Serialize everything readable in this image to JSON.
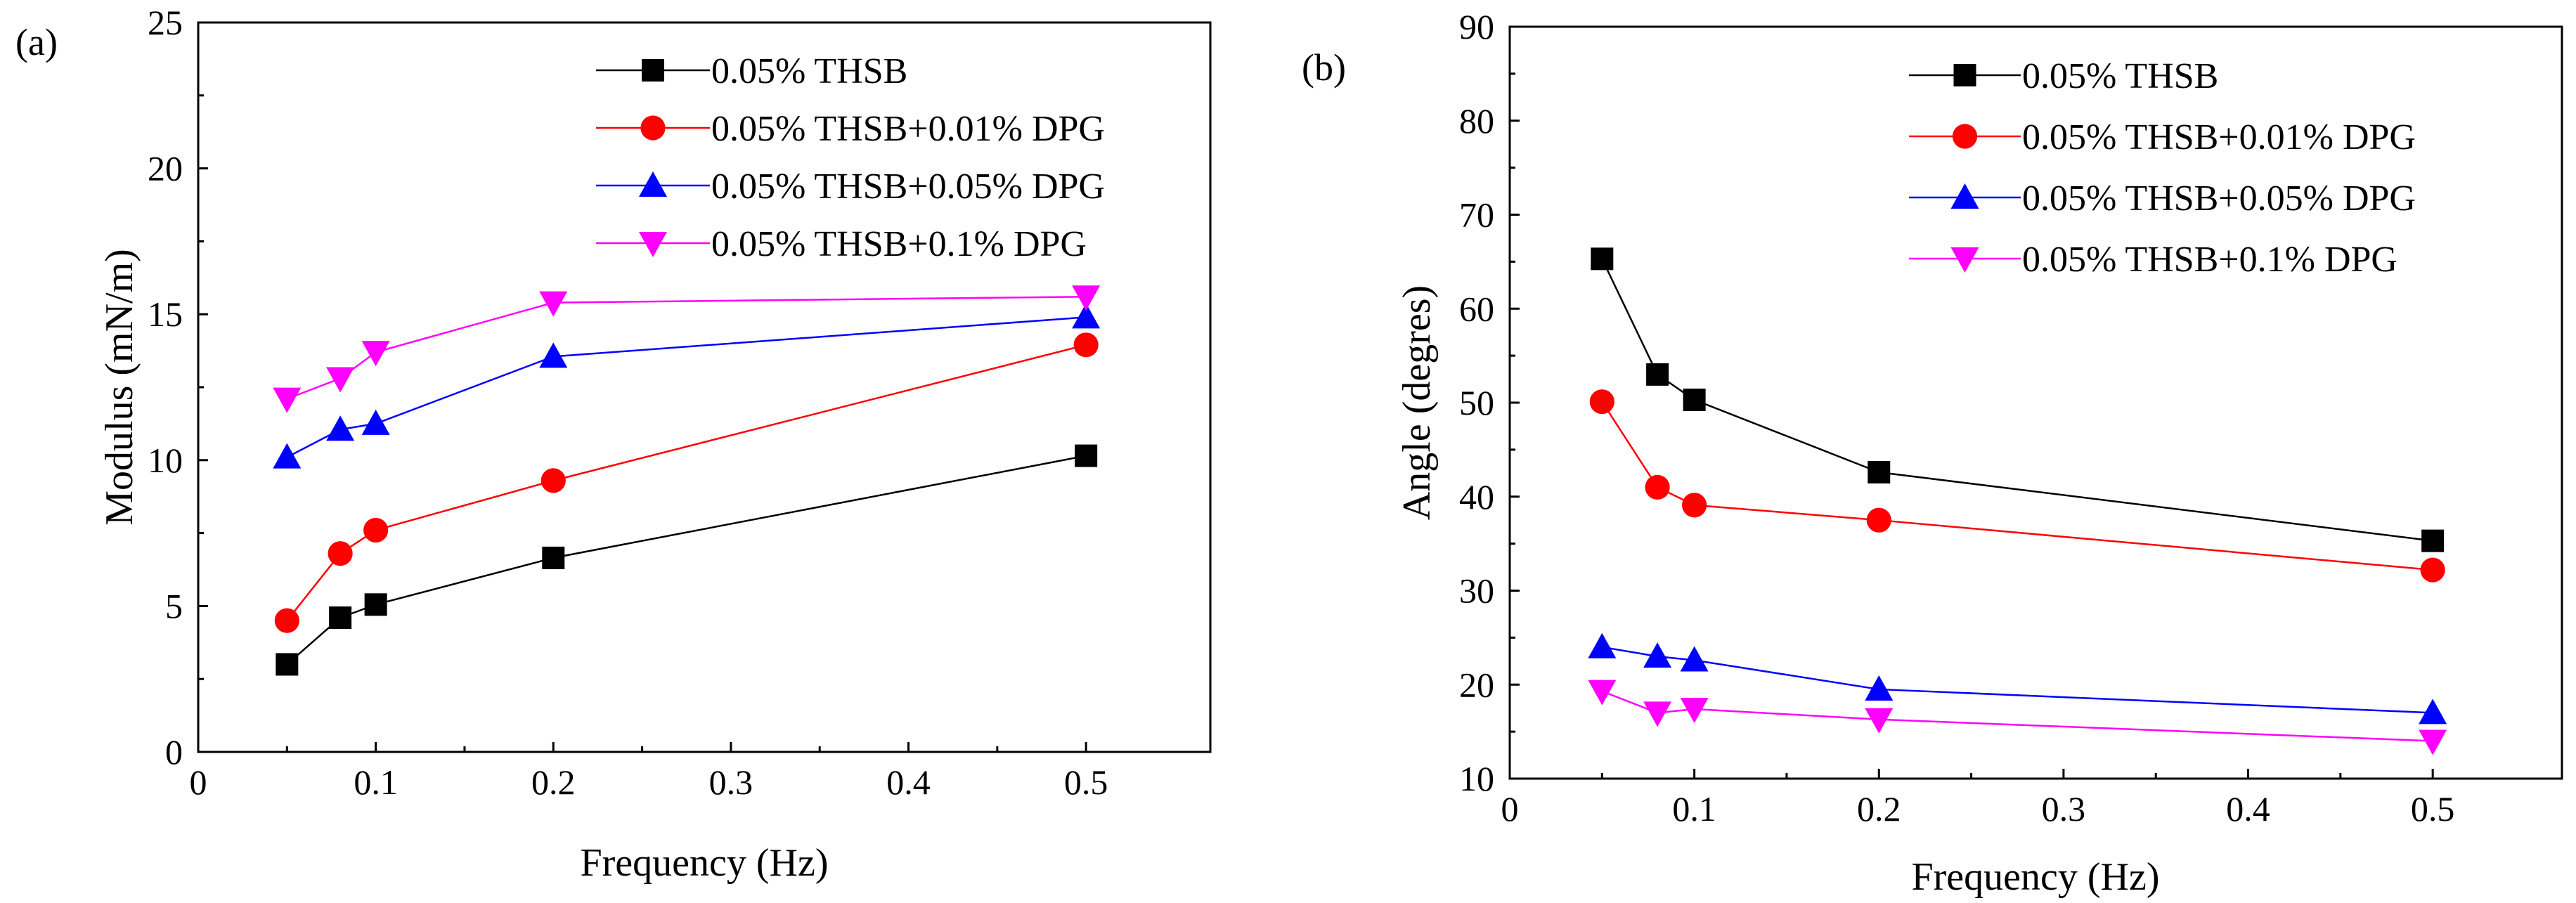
{
  "chart_data": [
    {
      "type": "line",
      "panel_label": "(a)",
      "title": "",
      "xlabel": "Frequency (Hz)",
      "ylabel": "Modulus (mN/m)",
      "xlim": [
        0,
        0.57
      ],
      "ylim": [
        0,
        25
      ],
      "xticks": [
        0,
        0.1,
        0.2,
        0.3,
        0.4,
        0.5
      ],
      "xtick_labels": [
        "0",
        "0.1",
        "0.2",
        "0.3",
        "0.4",
        "0.5"
      ],
      "yticks": [
        0,
        5,
        10,
        15,
        20,
        25
      ],
      "ytick_labels": [
        "0",
        "5",
        "10",
        "15",
        "20",
        "25"
      ],
      "grid": false,
      "legend_position": "top-right",
      "x": [
        0.05,
        0.08,
        0.1,
        0.2,
        0.5
      ],
      "series": [
        {
          "name": "0.05% THSB",
          "color": "#000000",
          "marker": "square",
          "values": [
            3.0,
            4.6,
            5.05,
            6.65,
            10.15
          ]
        },
        {
          "name": "0.05% THSB+0.01% DPG",
          "color": "#ff0000",
          "marker": "circle",
          "values": [
            4.5,
            6.8,
            7.6,
            9.3,
            13.95
          ]
        },
        {
          "name": "0.05% THSB+0.05% DPG",
          "color": "#0000ff",
          "marker": "triangle-up",
          "values": [
            10.1,
            11.05,
            11.25,
            13.55,
            14.9
          ]
        },
        {
          "name": "0.05% THSB+0.1% DPG",
          "color": "#ff00ff",
          "marker": "triangle-down",
          "values": [
            12.1,
            12.8,
            13.7,
            15.4,
            15.6
          ]
        }
      ]
    },
    {
      "type": "line",
      "panel_label": "(b)",
      "title": "",
      "xlabel": "Frequency (Hz)",
      "ylabel": "Angle (degres)",
      "xlim": [
        0,
        0.57
      ],
      "ylim": [
        10,
        90
      ],
      "xticks": [
        0,
        0.1,
        0.2,
        0.3,
        0.4,
        0.5
      ],
      "xtick_labels": [
        "0",
        "0.1",
        "0.2",
        "0.3",
        "0.4",
        "0.5"
      ],
      "yticks": [
        10,
        20,
        30,
        40,
        50,
        60,
        70,
        80,
        90
      ],
      "ytick_labels": [
        "10",
        "20",
        "30",
        "40",
        "50",
        "60",
        "70",
        "80",
        "90"
      ],
      "grid": false,
      "legend_position": "top-right",
      "x": [
        0.05,
        0.08,
        0.1,
        0.2,
        0.5
      ],
      "series": [
        {
          "name": "0.05% THSB",
          "color": "#000000",
          "marker": "square",
          "values": [
            65.3,
            53.0,
            50.3,
            42.6,
            35.3
          ]
        },
        {
          "name": "0.05% THSB+0.01% DPG",
          "color": "#ff0000",
          "marker": "circle",
          "values": [
            50.1,
            41.0,
            39.1,
            37.5,
            32.2
          ]
        },
        {
          "name": "0.05% THSB+0.05% DPG",
          "color": "#0000ff",
          "marker": "triangle-up",
          "values": [
            24.0,
            23.0,
            22.6,
            19.5,
            17.0
          ]
        },
        {
          "name": "0.05% THSB+0.1% DPG",
          "color": "#ff00ff",
          "marker": "triangle-down",
          "values": [
            19.3,
            17.0,
            17.4,
            16.3,
            14.0
          ]
        }
      ]
    }
  ]
}
